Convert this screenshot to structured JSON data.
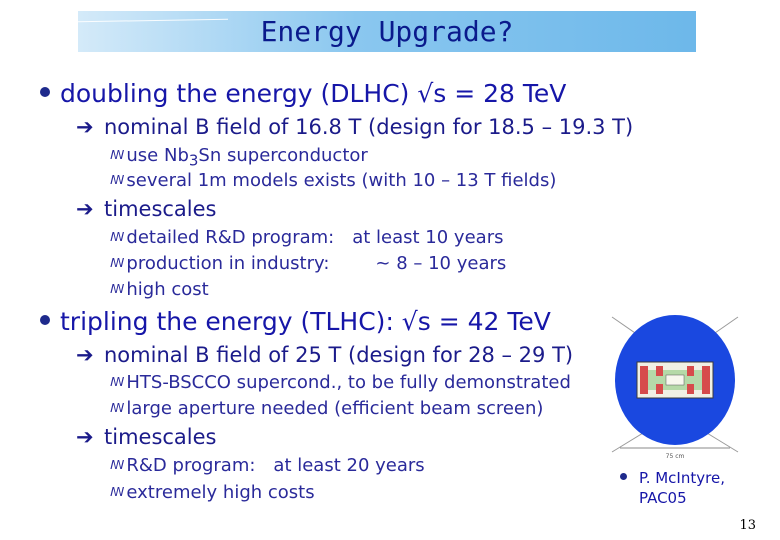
{
  "title": "Energy Upgrade?",
  "dlhc": {
    "heading": "doubling the energy (DLHC) √s = 28 TeV",
    "field": "nominal B field of 16.8 T (design for 18.5 – 19.3 T)",
    "sub1_pre": "use Nb",
    "sub1_sub": "3",
    "sub1_post": "Sn superconductor",
    "sub2": "several 1m models exists (with 10 – 13 T fields)",
    "timescales": "timescales",
    "ts1_label": "detailed R&D program:",
    "ts1_value": "at least 10 years",
    "ts2_label": "production in industry:",
    "ts2_value": "~ 8 – 10 years",
    "ts3": "high cost"
  },
  "tlhc": {
    "heading": "tripling the energy (TLHC):  √s = 42 TeV",
    "field": "nominal B field of 25 T (design for 28 – 29 T)",
    "sub1": "HTS-BSCCO supercond., to be fully demonstrated",
    "sub2": "large aperture needed (efficient beam screen)",
    "timescales": "timescales",
    "ts1_label": "R&D program:",
    "ts1_value": "at least 20 years",
    "ts2": "extremely high costs"
  },
  "reference": {
    "line1": "P. McIntyre,",
    "line2": "PAC05"
  },
  "figure": {
    "scale_label": "75 cm"
  },
  "page_number": "13",
  "colors": {
    "text": "#1616a8",
    "title_text": "#0a1a8c",
    "figure_blue": "#1a48e0"
  },
  "icons": {
    "bullet": "filled-circle",
    "arrow": "right-arrow",
    "sub_bullet": "script-m"
  }
}
